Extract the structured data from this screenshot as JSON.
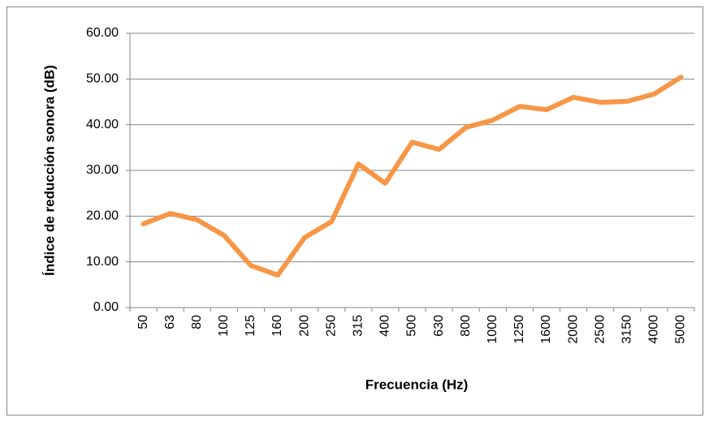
{
  "chart_data": {
    "type": "line",
    "x_label": "Frecuencia (Hz)",
    "y_label": "Índice de reducción sonora (dB)",
    "categories": [
      "50",
      "63",
      "80",
      "100",
      "125",
      "160",
      "200",
      "250",
      "315",
      "400",
      "500",
      "630",
      "800",
      "1000",
      "1250",
      "1600",
      "2000",
      "2500",
      "3150",
      "4000",
      "5000"
    ],
    "series": [
      {
        "color": "#f79646",
        "values": [
          18.3,
          20.6,
          19.2,
          15.8,
          9.2,
          7.1,
          15.3,
          18.8,
          31.4,
          27.2,
          36.2,
          34.6,
          39.4,
          41.0,
          44.0,
          43.3,
          46.0,
          44.9,
          45.1,
          46.7,
          50.4
        ]
      }
    ],
    "ylim": [
      0,
      60
    ],
    "yticks": [
      {
        "value": 0,
        "label": "0.00"
      },
      {
        "value": 10,
        "label": "10.00"
      },
      {
        "value": 20,
        "label": "20.00"
      },
      {
        "value": 30,
        "label": "30.00"
      },
      {
        "value": 40,
        "label": "40.00"
      },
      {
        "value": 50,
        "label": "50.00"
      },
      {
        "value": 60,
        "label": "60.00"
      }
    ],
    "grid": true
  }
}
